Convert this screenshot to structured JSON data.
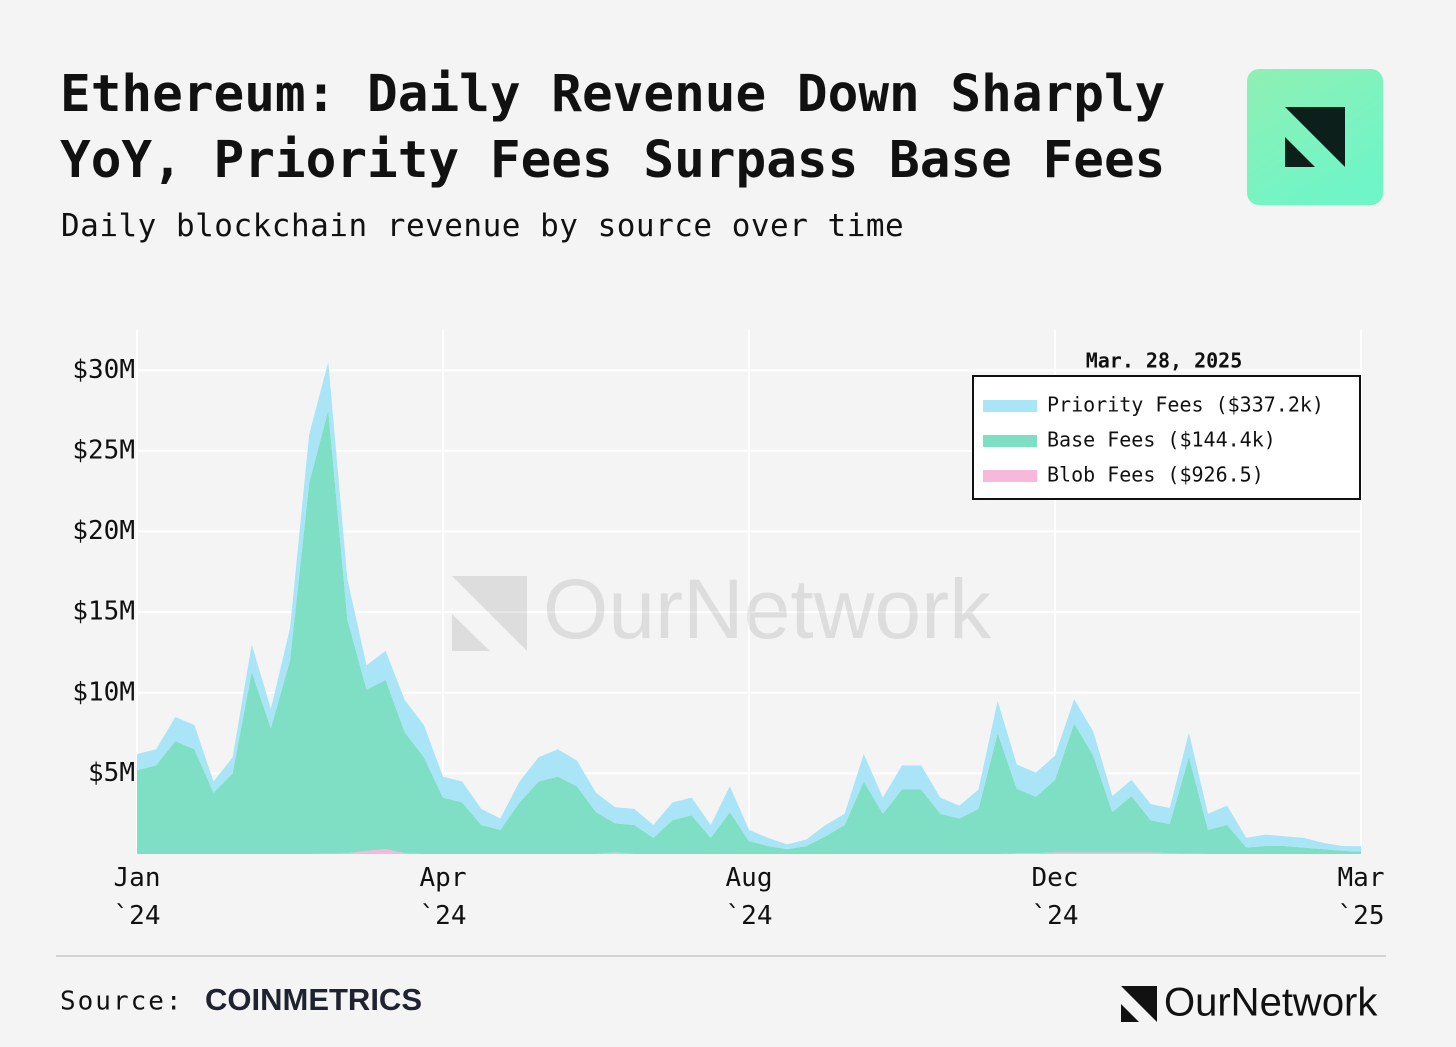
{
  "chart_data": {
    "type": "stacked_area",
    "title": "Ethereum: Daily Revenue Down Sharply YoY, Priority Fees Surpass Base Fees",
    "subtitle": "Daily blockchain revenue by source over time",
    "legend_title": "Mar. 28, 2025",
    "legend": "upper right",
    "grid": true,
    "x": [
      0,
      1,
      2,
      3,
      4,
      5,
      6,
      7,
      8,
      9,
      10,
      11,
      12,
      13,
      14,
      15,
      16,
      17,
      18,
      19,
      20,
      21,
      22,
      23,
      24,
      25,
      26,
      27,
      28,
      29,
      30,
      31,
      32,
      33,
      34,
      35,
      36,
      37,
      38,
      39,
      40,
      41,
      42,
      43,
      44,
      45,
      46,
      47,
      48,
      49,
      50,
      51,
      52,
      53,
      54,
      55,
      56,
      57,
      58,
      59,
      60,
      61,
      62,
      63,
      64
    ],
    "xlim": [
      0,
      64
    ],
    "xticks": [
      {
        "value": 0,
        "label": "Jan `24"
      },
      {
        "value": 16,
        "label": "Apr `24"
      },
      {
        "value": 32,
        "label": "Aug `24"
      },
      {
        "value": 48,
        "label": "Dec `24"
      },
      {
        "value": 64,
        "label": "Mar `25"
      }
    ],
    "ylim": [
      0,
      32.5
    ],
    "yticks": [
      {
        "value": 5,
        "label": "$5M"
      },
      {
        "value": 10,
        "label": "$10M"
      },
      {
        "value": 15,
        "label": "$15M"
      },
      {
        "value": 20,
        "label": "$20M"
      },
      {
        "value": 25,
        "label": "$25M"
      },
      {
        "value": 30,
        "label": "$30M"
      }
    ],
    "series": [
      {
        "name": "Priority Fees ($337.2k)",
        "color": "#a9e5f6",
        "values": [
          1.0,
          1.0,
          1.5,
          1.5,
          0.7,
          1.0,
          1.7,
          1.2,
          2.0,
          3.0,
          3.0,
          2.5,
          1.5,
          1.8,
          2.0,
          2.0,
          1.3,
          1.3,
          1.0,
          0.7,
          1.3,
          1.5,
          1.7,
          1.6,
          1.2,
          1.0,
          1.0,
          0.8,
          1.1,
          1.1,
          0.8,
          1.6,
          0.7,
          0.5,
          0.3,
          0.4,
          0.7,
          0.7,
          1.7,
          1.0,
          1.5,
          1.5,
          1.0,
          0.8,
          1.2,
          2.0,
          1.5,
          1.5,
          1.5,
          1.5,
          1.5,
          1.0,
          1.0,
          1.0,
          1.0,
          1.5,
          1.0,
          1.2,
          0.6,
          0.7,
          0.6,
          0.6,
          0.4,
          0.3,
          0.3372
        ]
      },
      {
        "name": "Base Fees ($144.4k)",
        "color": "#7fdfc5",
        "values": [
          5.2,
          5.5,
          7.0,
          6.5,
          3.8,
          5.0,
          11.3,
          7.8,
          12.0,
          23.0,
          27.5,
          14.5,
          10.0,
          10.5,
          7.5,
          6.0,
          3.5,
          3.2,
          1.8,
          1.5,
          3.2,
          4.5,
          4.8,
          4.2,
          2.6,
          1.8,
          1.8,
          1.0,
          2.1,
          2.4,
          1.0,
          2.6,
          0.8,
          0.5,
          0.3,
          0.5,
          1.1,
          1.8,
          4.5,
          2.5,
          4.0,
          4.0,
          2.5,
          2.2,
          2.8,
          7.5,
          4.0,
          3.5,
          4.5,
          8.0,
          6.0,
          2.5,
          3.5,
          2.0,
          1.8,
          6.0,
          1.5,
          1.8,
          0.4,
          0.5,
          0.5,
          0.4,
          0.3,
          0.2,
          0.1444
        ]
      },
      {
        "name": "Blob Fees ($926.5)",
        "color": "#f8b8da",
        "values": [
          0,
          0,
          0,
          0,
          0,
          0,
          0,
          0,
          0,
          0,
          0.02,
          0.05,
          0.2,
          0.3,
          0.05,
          0,
          0,
          0,
          0,
          0,
          0,
          0,
          0,
          0,
          0,
          0.1,
          0,
          0,
          0,
          0,
          0,
          0,
          0,
          0,
          0,
          0,
          0,
          0,
          0,
          0,
          0,
          0,
          0,
          0,
          0,
          0,
          0.05,
          0.05,
          0.1,
          0.1,
          0.1,
          0.1,
          0.1,
          0.1,
          0.05,
          0.02,
          0,
          0,
          0,
          0,
          0,
          0,
          0,
          0,
          0.0009265
        ]
      }
    ]
  },
  "watermark": "OurNetwork",
  "source_label": "Source:",
  "source": "COINMETRICS",
  "brand": "OurNetwork"
}
